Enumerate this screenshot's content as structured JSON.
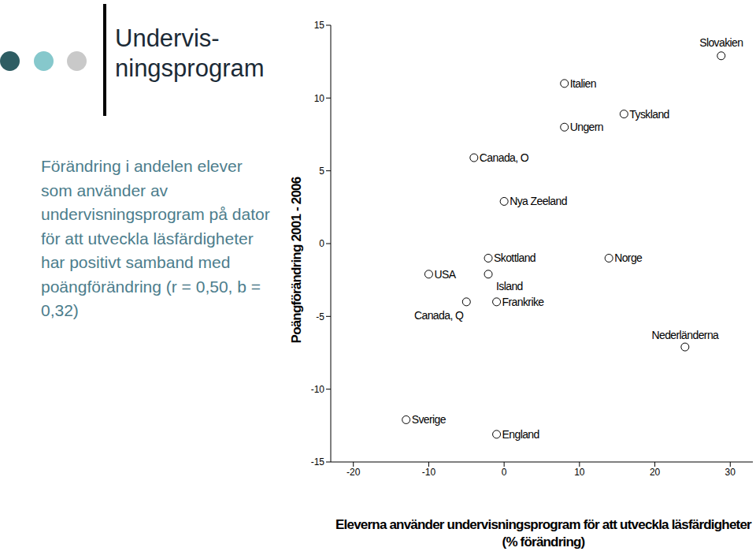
{
  "chart_data": {
    "type": "scatter",
    "title": "Undervis-ningsprogram",
    "subtitle": "Förändring i andelen elever som använder av undervisningsprogram på dator för att utveckla läsfärdigheter har positivt samband med poängförändring (r = 0,50, b = 0,32)",
    "x_label": "Eleverna använder undervisningsprogram för att utveckla läsfärdigheter (% förändring)",
    "y_label": "Poängförändring 2001 - 2006",
    "point_labels": [
      "Slovakien",
      "Italien",
      "Tyskland",
      "Ungern",
      "Canada, O",
      "Nya Zeeland",
      "Skottland",
      "Norge",
      "USA",
      "Island",
      "Canada, Q",
      "Frankrike",
      "Nederländerna",
      "Sverige",
      "England"
    ],
    "x": [
      28.8,
      8.0,
      15.9,
      8.0,
      -4.0,
      0.0,
      -2.1,
      13.9,
      -10.0,
      -2.1,
      -5.0,
      -1.0,
      24.0,
      -13.0,
      -1.0
    ],
    "values": [
      12.9,
      11.0,
      8.9,
      8.0,
      5.9,
      2.9,
      -1.0,
      -1.0,
      -2.1,
      -2.1,
      -4.0,
      -4.0,
      -7.1,
      -12.1,
      -13.1
    ],
    "xlim": [
      -23,
      33
    ],
    "xticks": [
      -20,
      -10,
      0,
      10,
      20,
      30
    ],
    "ylim": [
      -15,
      15
    ],
    "yticks": [
      -15,
      -10,
      -5,
      0,
      5,
      10,
      15
    ],
    "color": "#000000",
    "marker": "circle",
    "grid": false
  }
}
